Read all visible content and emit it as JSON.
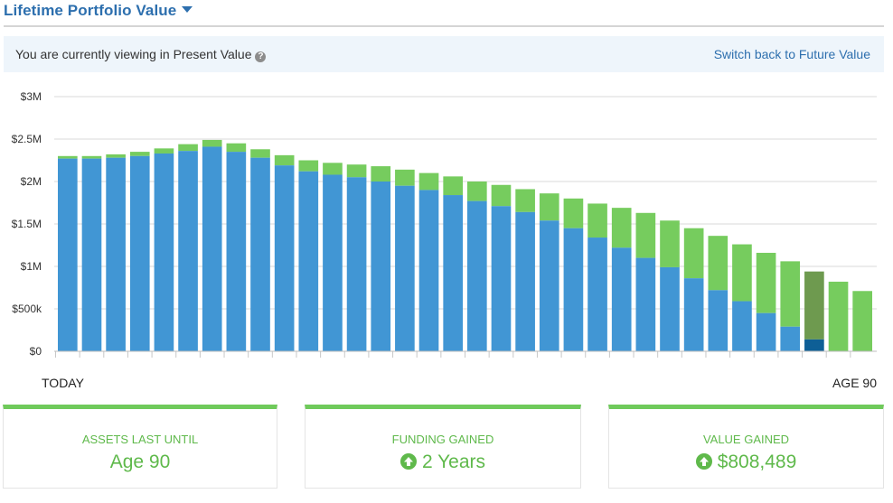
{
  "header": {
    "title": "Lifetime Portfolio Value"
  },
  "banner": {
    "text": "You are currently viewing in Present Value",
    "help_icon": "question-circle-icon",
    "link": "Switch back to Future Value"
  },
  "colors": {
    "blue": "#4196d4",
    "green": "#76cc5e",
    "highlight_blue": "#0e5f96",
    "highlight_green": "#6e9a4f",
    "accent": "#5fb94b"
  },
  "chart_data": {
    "type": "bar",
    "stacked": true,
    "x_start_label": "TODAY",
    "x_end_label": "AGE 90",
    "ylim": [
      0,
      3000000
    ],
    "y_ticks": [
      {
        "value": 0,
        "label": "$0"
      },
      {
        "value": 500000,
        "label": "$500k"
      },
      {
        "value": 1000000,
        "label": "$1M"
      },
      {
        "value": 1500000,
        "label": "$1.5M"
      },
      {
        "value": 2000000,
        "label": "$2M"
      },
      {
        "value": 2500000,
        "label": "$2.5M"
      },
      {
        "value": 3000000,
        "label": "$3M"
      }
    ],
    "grid": true,
    "highlight_index": 31,
    "series": [
      {
        "color": "#4196d4",
        "values": [
          2270000,
          2270000,
          2280000,
          2300000,
          2330000,
          2360000,
          2410000,
          2350000,
          2280000,
          2190000,
          2120000,
          2080000,
          2050000,
          2000000,
          1950000,
          1900000,
          1840000,
          1770000,
          1710000,
          1640000,
          1540000,
          1450000,
          1340000,
          1220000,
          1100000,
          990000,
          860000,
          720000,
          590000,
          450000,
          290000,
          140000,
          0,
          0
        ]
      },
      {
        "color": "#76cc5e",
        "values": [
          30000,
          30000,
          40000,
          50000,
          60000,
          80000,
          80000,
          100000,
          100000,
          120000,
          130000,
          140000,
          150000,
          180000,
          190000,
          200000,
          220000,
          230000,
          250000,
          270000,
          320000,
          350000,
          400000,
          470000,
          530000,
          550000,
          590000,
          640000,
          670000,
          710000,
          770000,
          800000,
          820000,
          710000
        ]
      }
    ]
  },
  "cards": [
    {
      "label": "ASSETS LAST UNTIL",
      "value": "Age 90",
      "icon": ""
    },
    {
      "label": "FUNDING GAINED",
      "value": "2 Years",
      "icon": "arrow-up-circle-icon"
    },
    {
      "label": "VALUE GAINED",
      "value": "$808,489",
      "icon": "arrow-up-circle-icon"
    }
  ]
}
